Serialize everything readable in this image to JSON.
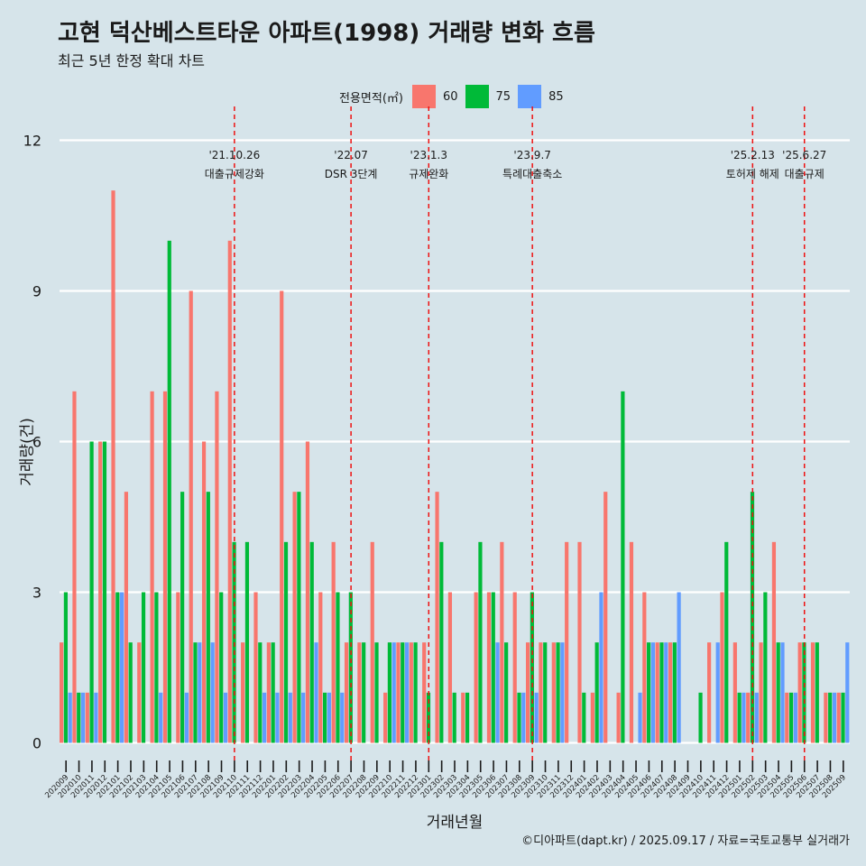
{
  "chart_data": {
    "type": "bar",
    "title": "고현 덕산베스트타운 아파트(1998) 거래량 변화 흐름",
    "subtitle": "최근 5년 한정 확대 차트",
    "xlabel": "거래년월",
    "ylabel": "거래량(건)",
    "legend_title": "전용면적(㎡)",
    "legend_position": "top",
    "caption": "©디아파트(dapt.kr) / 2025.09.17 / 자료=국토교통부 실거래가",
    "ylim": [
      0,
      12
    ],
    "yticks": [
      0,
      3,
      6,
      9,
      12
    ],
    "grid": true,
    "categories": [
      "202009",
      "202010",
      "202011",
      "202012",
      "202101",
      "202102",
      "202103",
      "202104",
      "202105",
      "202106",
      "202107",
      "202108",
      "202109",
      "202110",
      "202111",
      "202112",
      "202201",
      "202202",
      "202203",
      "202204",
      "202205",
      "202206",
      "202207",
      "202208",
      "202209",
      "202210",
      "202211",
      "202212",
      "202301",
      "202302",
      "202303",
      "202304",
      "202305",
      "202306",
      "202307",
      "202308",
      "202309",
      "202310",
      "202311",
      "202312",
      "202401",
      "202402",
      "202403",
      "202404",
      "202405",
      "202406",
      "202407",
      "202408",
      "202409",
      "202410",
      "202411",
      "202412",
      "202501",
      "202502",
      "202503",
      "202504",
      "202505",
      "202506",
      "202507",
      "202508",
      "202509"
    ],
    "series": [
      {
        "name": "60",
        "color": "#f8766d",
        "values": [
          2,
          7,
          1,
          6,
          11,
          5,
          2,
          7,
          7,
          3,
          9,
          6,
          7,
          10,
          2,
          3,
          2,
          9,
          5,
          6,
          3,
          4,
          2,
          2,
          4,
          1,
          2,
          2,
          2,
          5,
          3,
          1,
          3,
          3,
          4,
          3,
          2,
          2,
          2,
          4,
          4,
          1,
          5,
          1,
          4,
          3,
          2,
          2,
          0,
          0,
          2,
          3,
          2,
          1,
          2,
          4,
          1,
          2,
          2,
          1,
          1
        ]
      },
      {
        "name": "75",
        "color": "#00ba38",
        "values": [
          3,
          1,
          6,
          6,
          3,
          2,
          3,
          3,
          10,
          5,
          2,
          5,
          3,
          4,
          4,
          2,
          2,
          4,
          5,
          4,
          1,
          3,
          3,
          2,
          2,
          2,
          2,
          2,
          1,
          4,
          1,
          1,
          4,
          3,
          2,
          1,
          3,
          2,
          2,
          0,
          1,
          2,
          0,
          7,
          0,
          2,
          2,
          2,
          0,
          1,
          0,
          4,
          1,
          5,
          3,
          2,
          1,
          2,
          2,
          1,
          1
        ]
      },
      {
        "name": "85",
        "color": "#619cff",
        "values": [
          1,
          1,
          1,
          0,
          3,
          0,
          0,
          1,
          0,
          1,
          2,
          2,
          1,
          0,
          0,
          1,
          1,
          1,
          1,
          2,
          1,
          1,
          0,
          0,
          0,
          2,
          2,
          0,
          0,
          0,
          0,
          0,
          0,
          2,
          0,
          1,
          1,
          0,
          2,
          0,
          0,
          3,
          0,
          0,
          1,
          2,
          2,
          3,
          0,
          0,
          2,
          0,
          1,
          1,
          0,
          2,
          1,
          0,
          0,
          1,
          2
        ]
      }
    ],
    "events": [
      {
        "date": "'21.10.26",
        "label": "대출규제강화",
        "category": "202110"
      },
      {
        "date": "'22.07",
        "label": "DSR 3단계",
        "category": "202207"
      },
      {
        "date": "'23.1.3",
        "label": "규제완화",
        "category": "202301"
      },
      {
        "date": "'23.9.7",
        "label": "특례대출축소",
        "category": "202309"
      },
      {
        "date": "'25.2.13",
        "label": "토허제 해제",
        "category": "202502"
      },
      {
        "date": "'25.6.27",
        "label": "대출규제",
        "category": "202506"
      }
    ]
  }
}
